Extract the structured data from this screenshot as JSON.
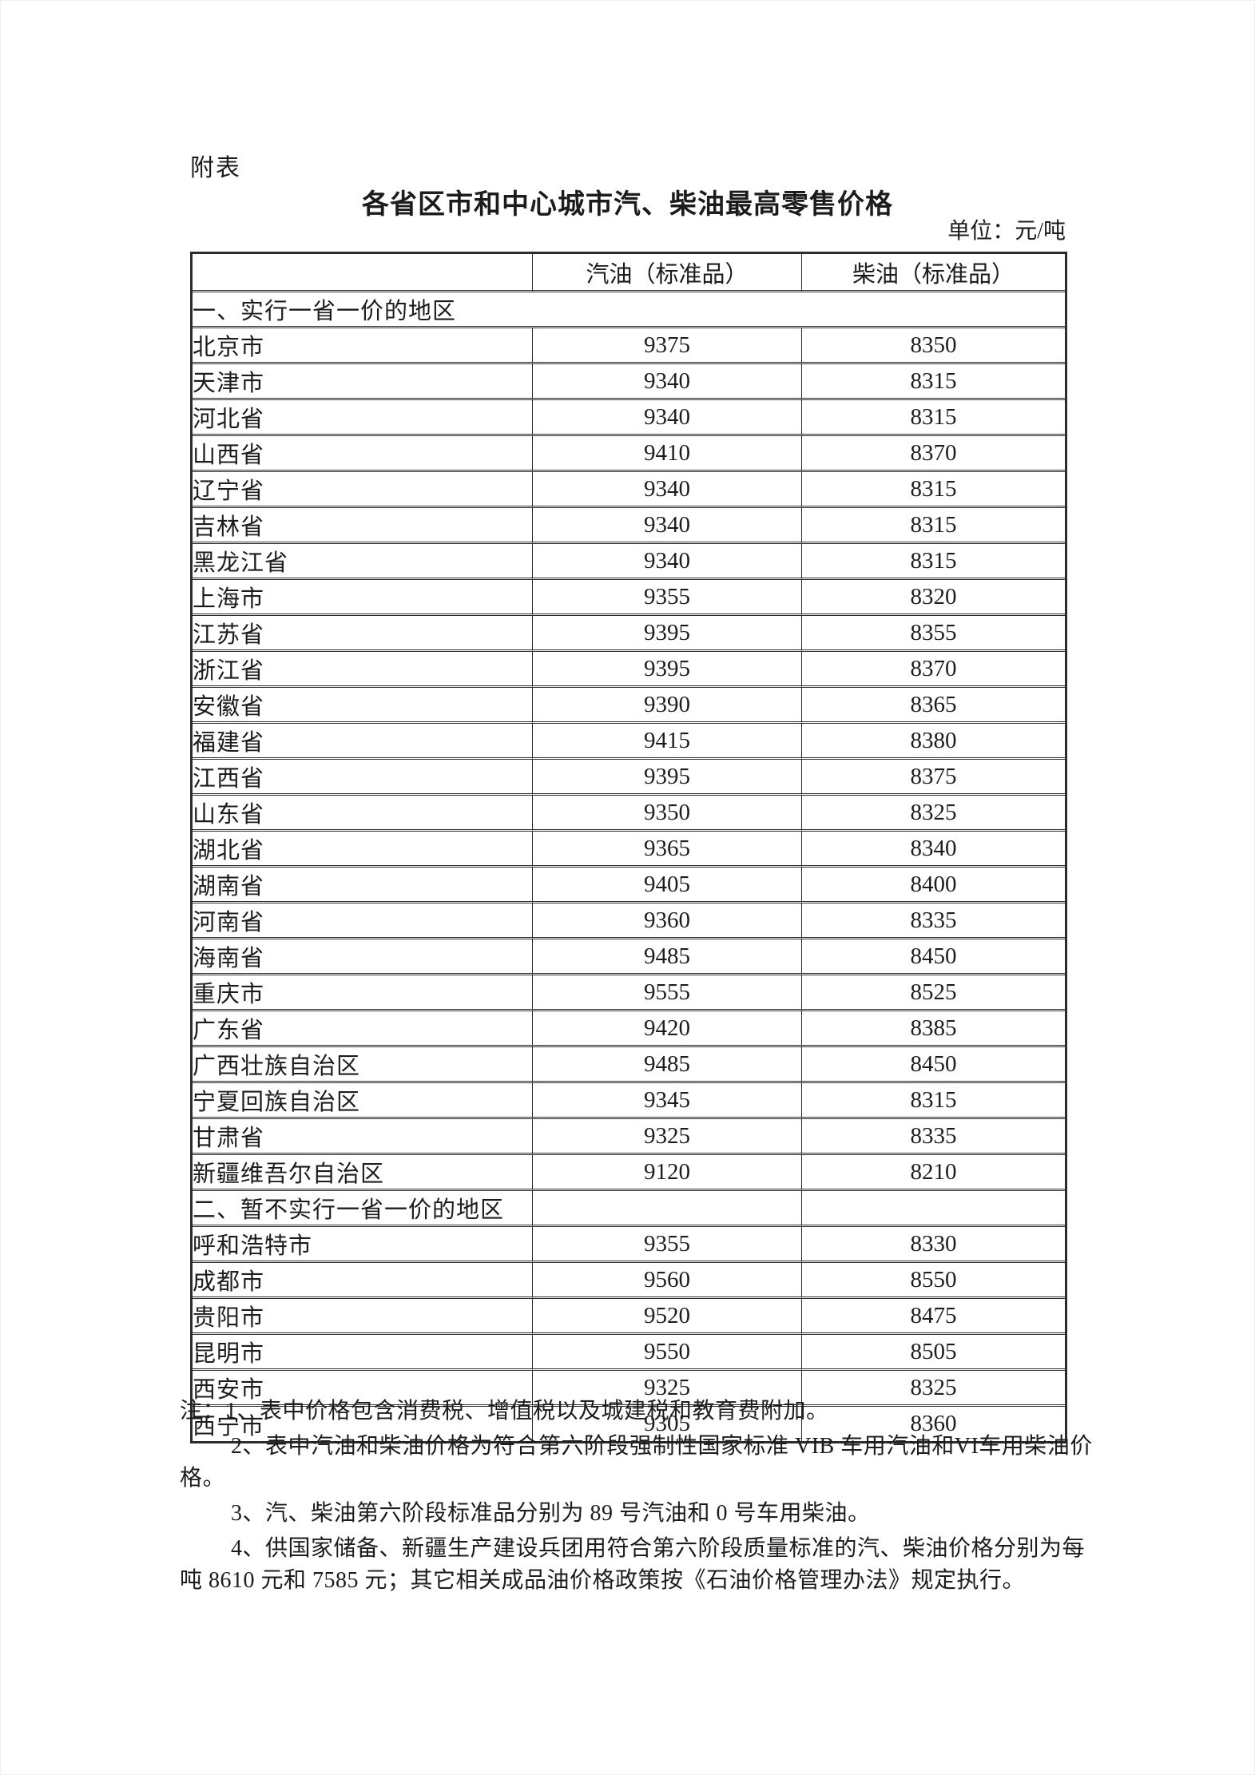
{
  "page": {
    "attachment_label": "附表",
    "title": "各省区市和中心城市汽、柴油最高零售价格",
    "unit_label": "单位：元/吨"
  },
  "table": {
    "columns": [
      "",
      "汽油（标准品）",
      "柴油（标准品）"
    ],
    "sections": [
      {
        "header": "一、实行一省一价的地区",
        "merged_header": true,
        "rows": [
          {
            "region": "北京市",
            "gasoline": "9375",
            "diesel": "8350"
          },
          {
            "region": "天津市",
            "gasoline": "9340",
            "diesel": "8315"
          },
          {
            "region": "河北省",
            "gasoline": "9340",
            "diesel": "8315"
          },
          {
            "region": "山西省",
            "gasoline": "9410",
            "diesel": "8370"
          },
          {
            "region": "辽宁省",
            "gasoline": "9340",
            "diesel": "8315"
          },
          {
            "region": "吉林省",
            "gasoline": "9340",
            "diesel": "8315"
          },
          {
            "region": "黑龙江省",
            "gasoline": "9340",
            "diesel": "8315"
          },
          {
            "region": "上海市",
            "gasoline": "9355",
            "diesel": "8320"
          },
          {
            "region": "江苏省",
            "gasoline": "9395",
            "diesel": "8355"
          },
          {
            "region": "浙江省",
            "gasoline": "9395",
            "diesel": "8370"
          },
          {
            "region": "安徽省",
            "gasoline": "9390",
            "diesel": "8365"
          },
          {
            "region": "福建省",
            "gasoline": "9415",
            "diesel": "8380"
          },
          {
            "region": "江西省",
            "gasoline": "9395",
            "diesel": "8375"
          },
          {
            "region": "山东省",
            "gasoline": "9350",
            "diesel": "8325"
          },
          {
            "region": "湖北省",
            "gasoline": "9365",
            "diesel": "8340"
          },
          {
            "region": "湖南省",
            "gasoline": "9405",
            "diesel": "8400"
          },
          {
            "region": "河南省",
            "gasoline": "9360",
            "diesel": "8335"
          },
          {
            "region": "海南省",
            "gasoline": "9485",
            "diesel": "8450"
          },
          {
            "region": "重庆市",
            "gasoline": "9555",
            "diesel": "8525"
          },
          {
            "region": "广东省",
            "gasoline": "9420",
            "diesel": "8385"
          },
          {
            "region": "广西壮族自治区",
            "gasoline": "9485",
            "diesel": "8450"
          },
          {
            "region": "宁夏回族自治区",
            "gasoline": "9345",
            "diesel": "8315"
          },
          {
            "region": "甘肃省",
            "gasoline": "9325",
            "diesel": "8335"
          },
          {
            "region": "新疆维吾尔自治区",
            "gasoline": "9120",
            "diesel": "8210"
          }
        ]
      },
      {
        "header": "二、暂不实行一省一价的地区",
        "merged_header": false,
        "rows": [
          {
            "region": "呼和浩特市",
            "gasoline": "9355",
            "diesel": "8330"
          },
          {
            "region": "成都市",
            "gasoline": "9560",
            "diesel": "8550"
          },
          {
            "region": "贵阳市",
            "gasoline": "9520",
            "diesel": "8475"
          },
          {
            "region": "昆明市",
            "gasoline": "9550",
            "diesel": "8505"
          },
          {
            "region": "西安市",
            "gasoline": "9325",
            "diesel": "8325"
          },
          {
            "region": "西宁市",
            "gasoline": "9305",
            "diesel": "8360"
          }
        ]
      }
    ]
  },
  "notes": {
    "lines": [
      {
        "indent": false,
        "text": "注：1、表中价格包含消费税、增值税以及城建税和教育费附加。"
      },
      {
        "indent": true,
        "text": "2、表中汽油和柴油价格为符合第六阶段强制性国家标准 VIB 车用汽油和VI车用柴油价"
      },
      {
        "indent": false,
        "text": "格。"
      },
      {
        "indent": true,
        "text": "3、汽、柴油第六阶段标准品分别为 89 号汽油和 0 号车用柴油。"
      },
      {
        "indent": true,
        "text": "4、供国家储备、新疆生产建设兵团用符合第六阶段质量标准的汽、柴油价格分别为每"
      },
      {
        "indent": false,
        "text": "吨 8610 元和 7585 元；其它相关成品油价格政策按《石油价格管理办法》规定执行。"
      }
    ]
  },
  "colors": {
    "background": "#ffffff",
    "text": "#1c1c1c",
    "table_border": "#2c2c2c"
  }
}
